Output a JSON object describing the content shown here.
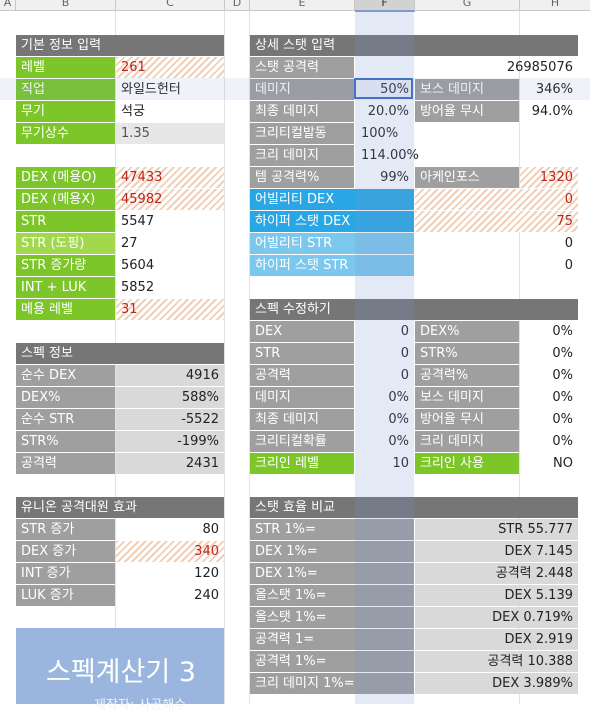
{
  "columns": [
    "A",
    "B",
    "C",
    "D",
    "E",
    "F",
    "G",
    "H"
  ],
  "basic": {
    "title": "기본 정보 입력",
    "rows": [
      {
        "label": "레벨",
        "value": "261"
      },
      {
        "label": "직업",
        "value": "와일드헌터"
      },
      {
        "label": "무기",
        "value": "석궁"
      },
      {
        "label": "무기상수",
        "value": "1.35"
      }
    ]
  },
  "stats_input": {
    "rows": [
      {
        "label": "DEX (메용O)",
        "value": "47433"
      },
      {
        "label": "DEX (메용X)",
        "value": "45982"
      },
      {
        "label": "STR",
        "value": "5547"
      },
      {
        "label": "STR (도핑)",
        "value": "27"
      },
      {
        "label": "STR 증가량",
        "value": "5604"
      },
      {
        "label": "INT + LUK",
        "value": "5852"
      },
      {
        "label": "메용 레벨",
        "value": "31"
      }
    ]
  },
  "spec_info": {
    "title": "스펙 정보",
    "rows": [
      {
        "label": "순수 DEX",
        "value": "4916"
      },
      {
        "label": "DEX%",
        "value": "588%"
      },
      {
        "label": "순수 STR",
        "value": "-5522"
      },
      {
        "label": "STR%",
        "value": "-199%"
      },
      {
        "label": "공격력",
        "value": "2431"
      }
    ]
  },
  "union": {
    "title": "유니온 공격대원 효과",
    "rows": [
      {
        "label": "STR 증가",
        "value": "80"
      },
      {
        "label": "DEX 증가",
        "value": "340"
      },
      {
        "label": "INT 증가",
        "value": "120"
      },
      {
        "label": "LUK 증가",
        "value": "240"
      }
    ]
  },
  "banner": {
    "title": "스펙계산기 3",
    "subtitle": "제작자: 사공해수"
  },
  "detail": {
    "title": "상세 스탯 입력",
    "attack_label": "스탯 공격력",
    "attack_value": "26985076",
    "damage_label": "데미지",
    "damage_value": "50%",
    "boss_label": "보스 데미지",
    "boss_value": "346%",
    "final_label": "최종 데미지",
    "final_value": "20.0%",
    "ignore_label": "방어율 무시",
    "ignore_value": "94.0%",
    "crit_rate_label": "크리티컬발동",
    "crit_rate_value": "100%",
    "crit_dmg_label": "크리 데미지",
    "crit_dmg_value": "114.00%",
    "item_atk_label": "템 공격력%",
    "item_atk_value": "99%",
    "arcane_label": "아케인포스",
    "arcane_value": "1320",
    "ability_dex_label": "어빌리티 DEX",
    "ability_dex_value": "0",
    "hyper_dex_label": "하이퍼 스탯 DEX",
    "hyper_dex_value": "75",
    "ability_str_label": "어빌리티 STR",
    "ability_str_value": "0",
    "hyper_str_label": "하이퍼 스탯 STR",
    "hyper_str_value": "0"
  },
  "modify": {
    "title": "스펙 수정하기",
    "rows": [
      {
        "l1": "DEX",
        "v1": "0",
        "l2": "DEX%",
        "v2": "0%"
      },
      {
        "l1": "STR",
        "v1": "0",
        "l2": "STR%",
        "v2": "0%"
      },
      {
        "l1": "공격력",
        "v1": "0",
        "l2": "공격력%",
        "v2": "0%"
      },
      {
        "l1": "데미지",
        "v1": "0%",
        "l2": "보스 데미지",
        "v2": "0%"
      },
      {
        "l1": "최종 데미지",
        "v1": "0%",
        "l2": "방어율 무시",
        "v2": "0%"
      },
      {
        "l1": "크리티컬확률",
        "v1": "0%",
        "l2": "크리 데미지",
        "v2": "0%"
      },
      {
        "l1": "크리인 레벨",
        "v1": "10",
        "l2": "크리인 사용",
        "v2": "NO"
      }
    ]
  },
  "efficiency": {
    "title": "스탯 효율 비교",
    "rows": [
      {
        "label": "STR 1%=",
        "value": "STR 55.777"
      },
      {
        "label": "DEX 1%=",
        "value": "DEX 7.145"
      },
      {
        "label": "DEX 1%=",
        "value": "공격력 2.448"
      },
      {
        "label": "올스탯 1%=",
        "value": "DEX 5.139"
      },
      {
        "label": "올스탯 1%=",
        "value": "DEX 0.719%"
      },
      {
        "label": "공격력 1=",
        "value": "DEX 2.919"
      },
      {
        "label": "공격력 1%=",
        "value": "공격력 10.388"
      },
      {
        "label": "크리 데미지 1%=",
        "value": "DEX 3.989%"
      }
    ]
  }
}
